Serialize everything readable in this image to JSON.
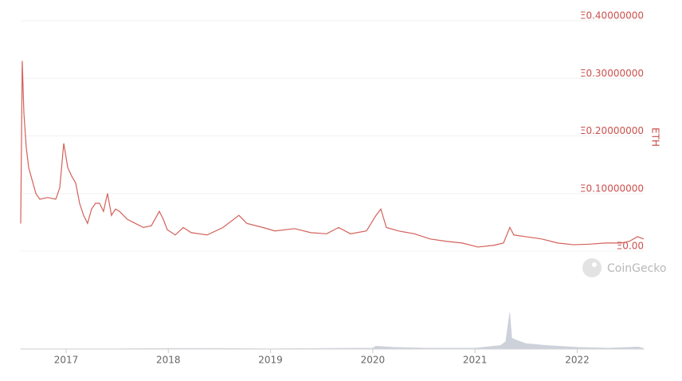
{
  "chart_data": [
    {
      "type": "line",
      "y_axis_label": "ETH",
      "watermark": "CoinGecko",
      "x": [
        2016.556,
        2016.564,
        2016.571,
        2016.587,
        2016.61,
        2016.634,
        2016.665,
        2016.704,
        2016.743,
        2016.821,
        2016.899,
        2016.938,
        2016.977,
        2017.016,
        2017.055,
        2017.094,
        2017.132,
        2017.171,
        2017.21,
        2017.249,
        2017.288,
        2017.327,
        2017.366,
        2017.405,
        2017.444,
        2017.483,
        2017.522,
        2017.6,
        2017.678,
        2017.756,
        2017.834,
        2017.912,
        2017.951,
        2017.99,
        2018.068,
        2018.146,
        2018.224,
        2018.38,
        2018.535,
        2018.691,
        2018.769,
        2018.925,
        2019.042,
        2019.237,
        2019.393,
        2019.549,
        2019.666,
        2019.782,
        2019.938,
        2020.032,
        2020.079,
        2020.133,
        2020.25,
        2020.406,
        2020.562,
        2020.718,
        2020.874,
        2021.029,
        2021.185,
        2021.279,
        2021.341,
        2021.38,
        2021.497,
        2021.653,
        2021.809,
        2021.965,
        2022.121,
        2022.277,
        2022.432,
        2022.51,
        2022.589,
        2022.651
      ],
      "series": [
        {
          "color": "#d3615a",
          "values": [
            0.048,
            0.2,
            0.33,
            0.24,
            0.18,
            0.145,
            0.125,
            0.1,
            0.09,
            0.093,
            0.09,
            0.11,
            0.187,
            0.145,
            0.13,
            0.118,
            0.083,
            0.062,
            0.048,
            0.073,
            0.083,
            0.083,
            0.069,
            0.1,
            0.062,
            0.073,
            0.069,
            0.055,
            0.048,
            0.041,
            0.044,
            0.069,
            0.055,
            0.037,
            0.028,
            0.041,
            0.032,
            0.028,
            0.041,
            0.062,
            0.048,
            0.041,
            0.035,
            0.039,
            0.032,
            0.03,
            0.041,
            0.03,
            0.035,
            0.062,
            0.073,
            0.041,
            0.035,
            0.03,
            0.021,
            0.017,
            0.014,
            0.007,
            0.01,
            0.014,
            0.041,
            0.028,
            0.025,
            0.021,
            0.014,
            0.011,
            0.012,
            0.014,
            0.014,
            0.017,
            0.025,
            0.021
          ]
        }
      ],
      "xlim": [
        2016.556,
        2022.651
      ],
      "xticks": [
        2017,
        2018,
        2019,
        2020,
        2021,
        2022
      ],
      "ylim": [
        0,
        0.4
      ],
      "yticks": [
        {
          "value": 0,
          "label": "Ξ0.00"
        },
        {
          "value": 0.1,
          "label": "Ξ0.10000000"
        },
        {
          "value": 0.2,
          "label": "Ξ0.20000000"
        },
        {
          "value": 0.3,
          "label": "Ξ0.30000000"
        },
        {
          "value": 0.4,
          "label": "Ξ0.40000000"
        }
      ],
      "grid": true
    },
    {
      "type": "area",
      "x": [
        2016.556,
        2017.0,
        2017.5,
        2018.0,
        2018.5,
        2019.0,
        2019.5,
        2020.0,
        2020.03,
        2020.2,
        2020.5,
        2021.0,
        2021.25,
        2021.3,
        2021.34,
        2021.36,
        2021.4,
        2021.5,
        2021.7,
        2022.0,
        2022.3,
        2022.6,
        2022.651
      ],
      "series": [
        {
          "color": "#ccd1da",
          "values": [
            1,
            1,
            1,
            2,
            2,
            1,
            2,
            3,
            8,
            5,
            3,
            3,
            10,
            20,
            100,
            30,
            25,
            15,
            10,
            5,
            3,
            6,
            2
          ]
        }
      ],
      "xlim": [
        2016.556,
        2022.651
      ],
      "ylim": [
        0,
        100
      ]
    }
  ]
}
